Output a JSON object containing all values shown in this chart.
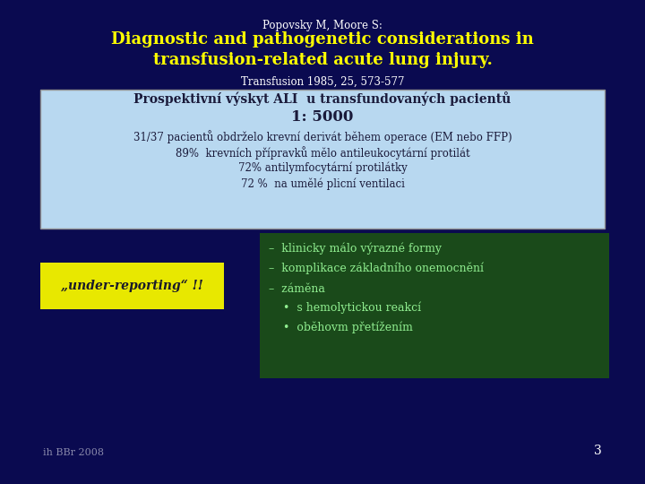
{
  "bg_color": "#0a0a50",
  "title_small": "Popovsky M, Moore S:",
  "title_main": "Diagnostic and pathogenetic considerations in\ntransfusion-related acute lung injury.",
  "title_sub": "Transfusion 1985, 25, 573-577",
  "box1_bg": "#b8d8f0",
  "box1_line1": "Prospektivní výskyt ALI  u transfundovaných pacientů",
  "box1_line2": "1: 5000",
  "box1_line3": "31/37 pacientů obdrželo krevní derivát během operace (EM nebo FFP)",
  "box1_line4": "89%  krevních přípravků mělo antileukocytární protilát",
  "box1_line5": "72% antilymfocytární protilátky",
  "box1_line6": "72 %  na umělé plicní ventilaci",
  "under_reporting_bg": "#e8e800",
  "under_reporting_text": "„under-reporting“ !!",
  "box2_bg": "#1a4a1a",
  "box2_line1": "–  klinicky málo výrazné formy",
  "box2_line2": "–  komplikace základního onemocnění",
  "box2_line3": "–  záměna",
  "box2_line4": "    •  s hemolytickou reakcí",
  "box2_line5": "    •  oběhovm přetížením",
  "footer_text": "ih BBr 2008",
  "page_number": "3",
  "title_small_color": "#ffffff",
  "title_main_color": "#ffff00",
  "title_sub_color": "#ffffff",
  "box1_text_color": "#1a1a3a",
  "box2_text_color": "#90ee90",
  "footer_color": "#8888aa",
  "page_color": "#ffffff"
}
